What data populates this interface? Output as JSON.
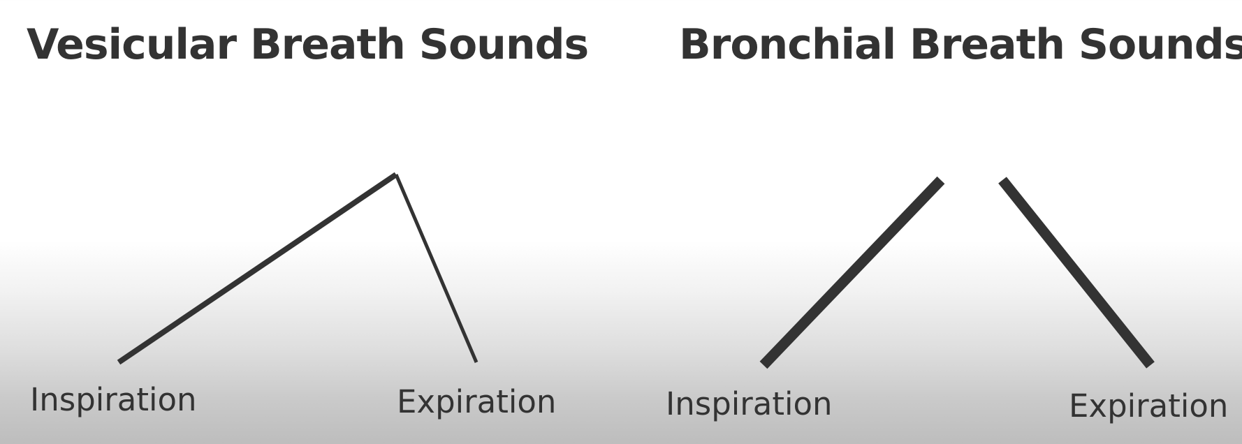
{
  "panels": {
    "vesicular": {
      "title": "Vesicular Breath Sounds",
      "inspiration_label": "Inspiration",
      "expiration_label": "Expiration"
    },
    "bronchial": {
      "title": "Bronchial Breath Sounds",
      "inspiration_label": "Inspiration",
      "expiration_label": "Expiration"
    }
  },
  "colors": {
    "ink": "#333333",
    "background_top": "#ffffff",
    "background_bottom": "#bdbdbd"
  }
}
